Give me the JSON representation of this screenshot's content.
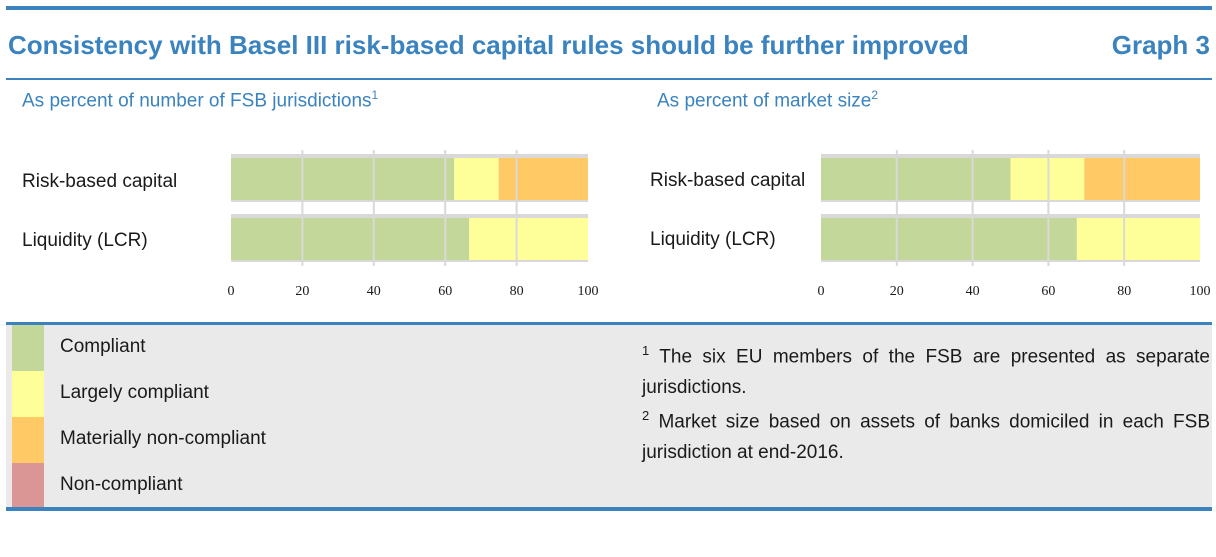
{
  "header": {
    "title": "Consistency with Basel III risk-based capital rules should be further improved",
    "graph_label": "Graph 3"
  },
  "colors": {
    "accent": "#3a83bf",
    "compliant": "#c4d79b",
    "largely_compliant": "#ffff99",
    "materially_non_compliant": "#ffc966",
    "non_compliant": "#da9694",
    "track": "#d9d9d9"
  },
  "chart_data": [
    {
      "type": "bar",
      "orientation": "horizontal",
      "stacked": true,
      "title": "As percent of number of FSB jurisdictions",
      "title_footnote": "1",
      "categories": [
        "Risk-based capital",
        "Liquidity (LCR)"
      ],
      "series": [
        {
          "name": "Compliant",
          "values": [
            62.5,
            66.7
          ]
        },
        {
          "name": "Largely compliant",
          "values": [
            12.5,
            33.3
          ]
        },
        {
          "name": "Materially non-compliant",
          "values": [
            25.0,
            0
          ]
        },
        {
          "name": "Non-compliant",
          "values": [
            0,
            0
          ]
        }
      ],
      "xlim": [
        0,
        100
      ],
      "xticks": [
        "0",
        "20",
        "40",
        "60",
        "80",
        "100"
      ],
      "grid": true
    },
    {
      "type": "bar",
      "orientation": "horizontal",
      "stacked": true,
      "title": "As percent of market size",
      "title_footnote": "2",
      "categories": [
        "Risk-based capital",
        "Liquidity (LCR)"
      ],
      "series": [
        {
          "name": "Compliant",
          "values": [
            50.0,
            67.5
          ]
        },
        {
          "name": "Largely compliant",
          "values": [
            19.5,
            32.5
          ]
        },
        {
          "name": "Materially non-compliant",
          "values": [
            30.5,
            0
          ]
        },
        {
          "name": "Non-compliant",
          "values": [
            0,
            0
          ]
        }
      ],
      "xlim": [
        0,
        100
      ],
      "xticks": [
        "0",
        "20",
        "40",
        "60",
        "80",
        "100"
      ],
      "grid": true
    }
  ],
  "legend": {
    "items": [
      {
        "label": "Compliant"
      },
      {
        "label": "Largely compliant"
      },
      {
        "label": "Materially non-compliant"
      },
      {
        "label": "Non-compliant"
      }
    ]
  },
  "footnotes": [
    {
      "marker": "1",
      "text": "The six EU members of the FSB are presented as separate jurisdictions."
    },
    {
      "marker": "2",
      "text": "Market size based on assets of banks domiciled in each FSB jurisdiction at end-2016."
    }
  ]
}
